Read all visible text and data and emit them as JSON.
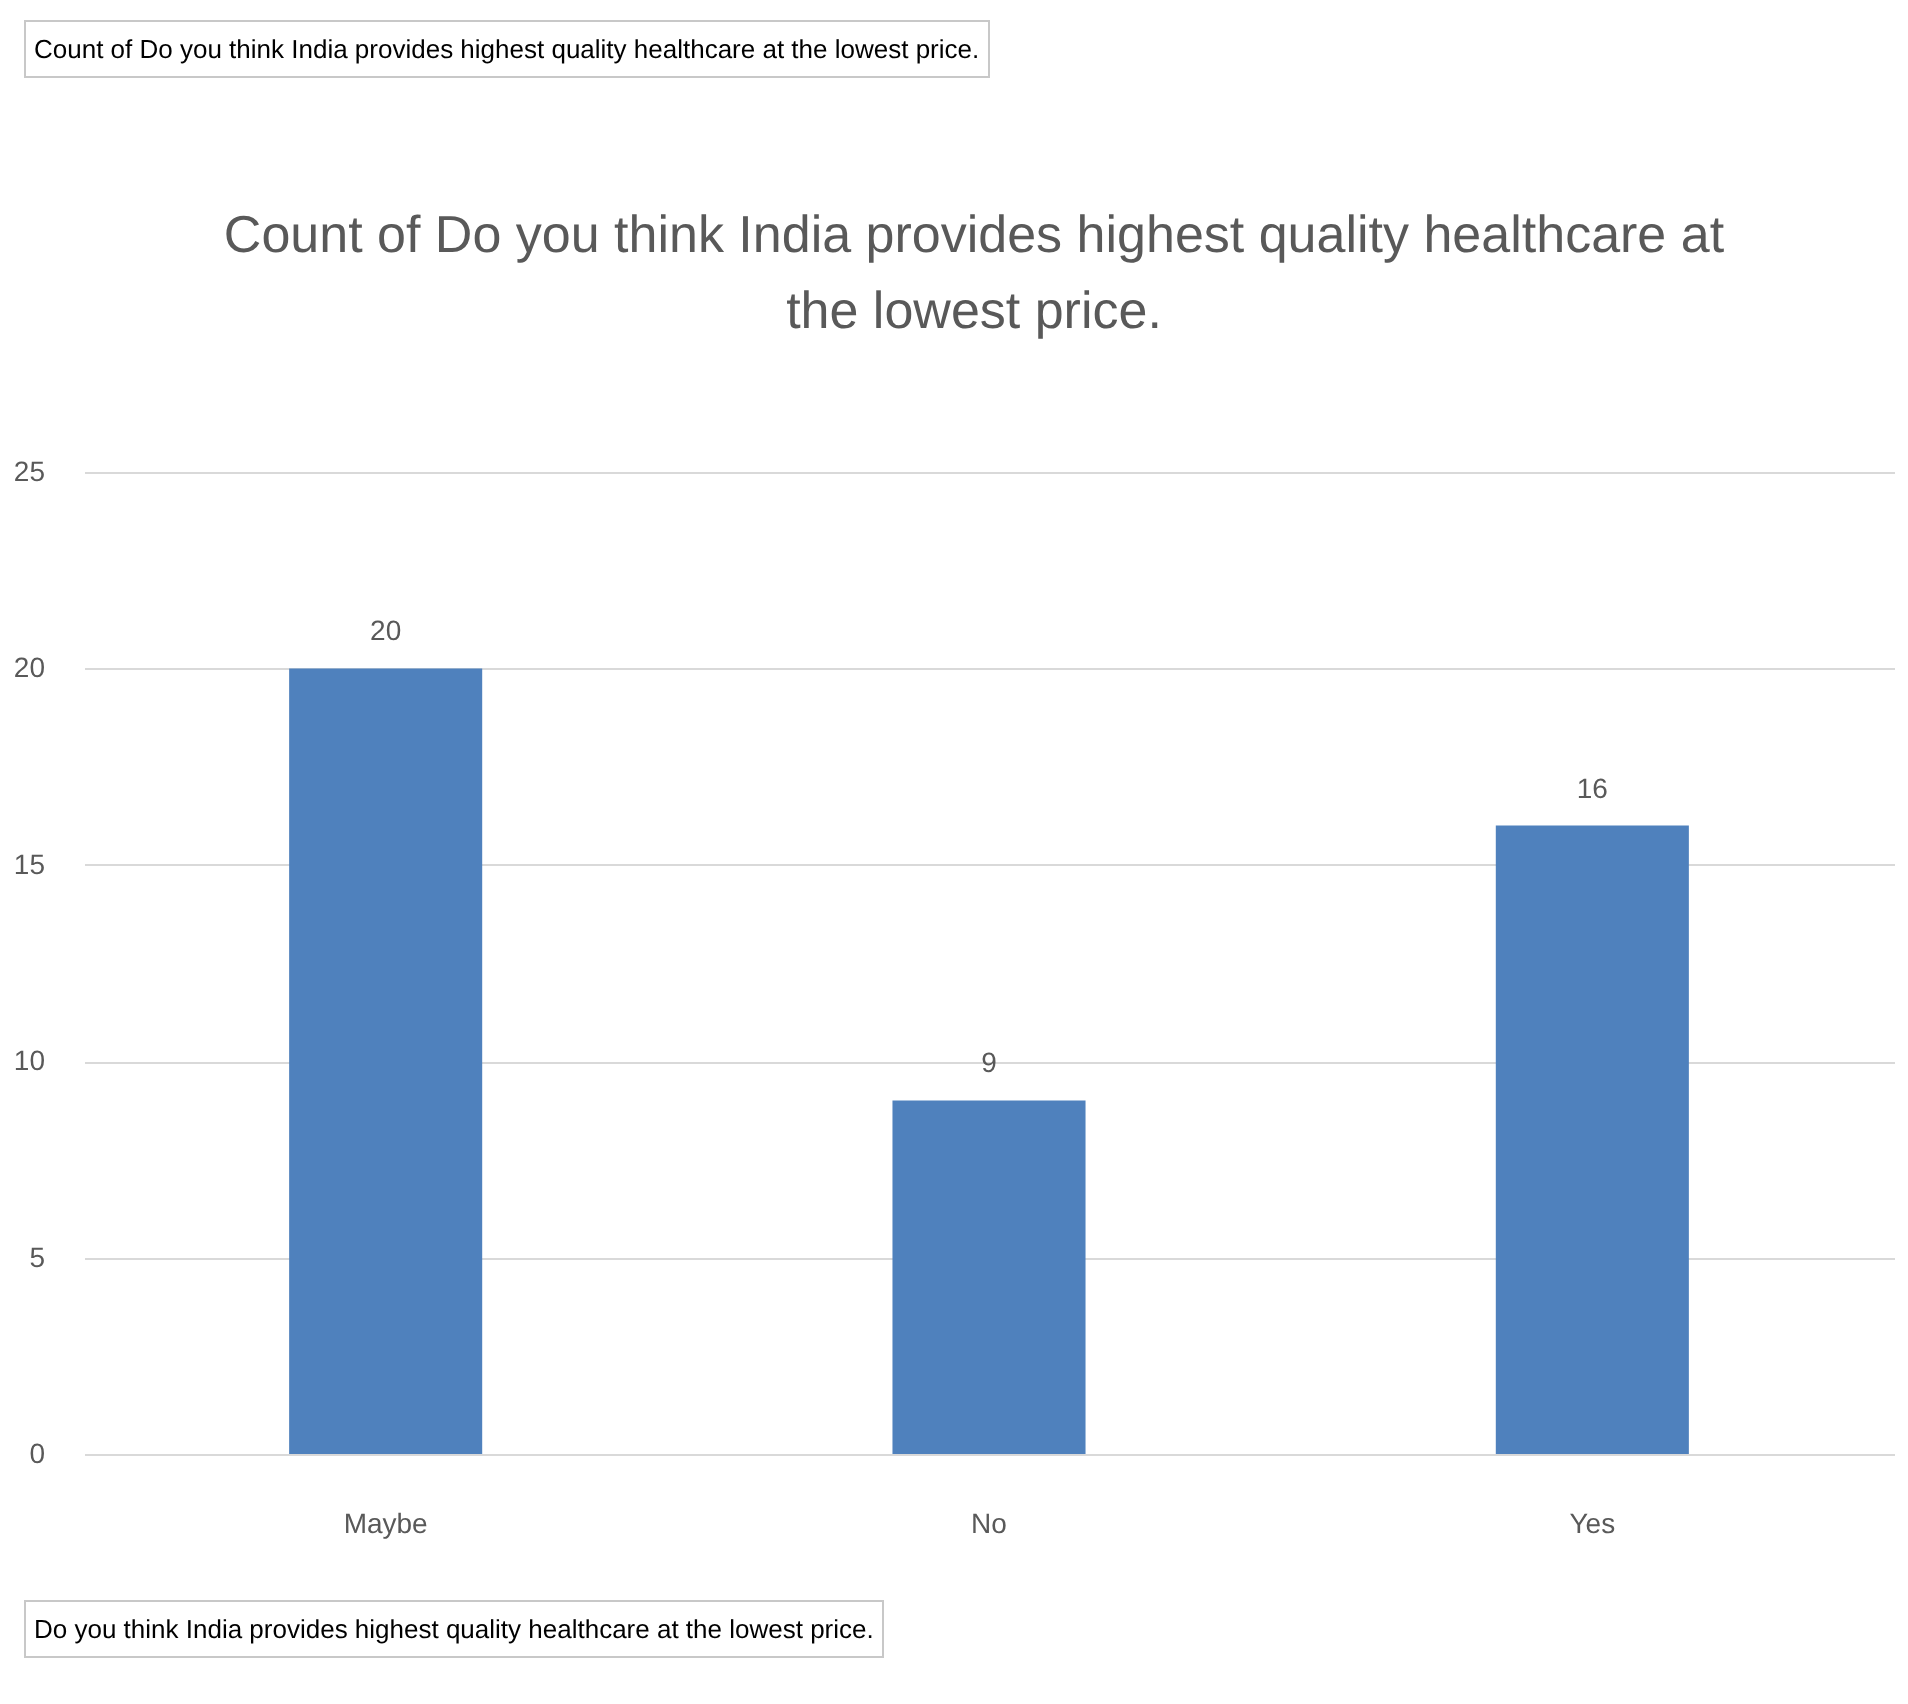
{
  "chart_data": {
    "type": "bar",
    "title": "Count of  Do you think India provides highest quality healthcare at the lowest price.",
    "annotations": [
      "Count of  Do you think India provides highest quality healthcare at the lowest price.",
      "Do you think India provides highest quality healthcare at the lowest price."
    ],
    "categories": [
      "Maybe",
      "No",
      "Yes"
    ],
    "values": [
      20,
      9,
      16
    ],
    "color": "#4f81bd",
    "ylim": [
      0,
      25
    ],
    "yticks": [
      0,
      5,
      10,
      15,
      20,
      25
    ],
    "grid": true,
    "data_labels": true
  }
}
